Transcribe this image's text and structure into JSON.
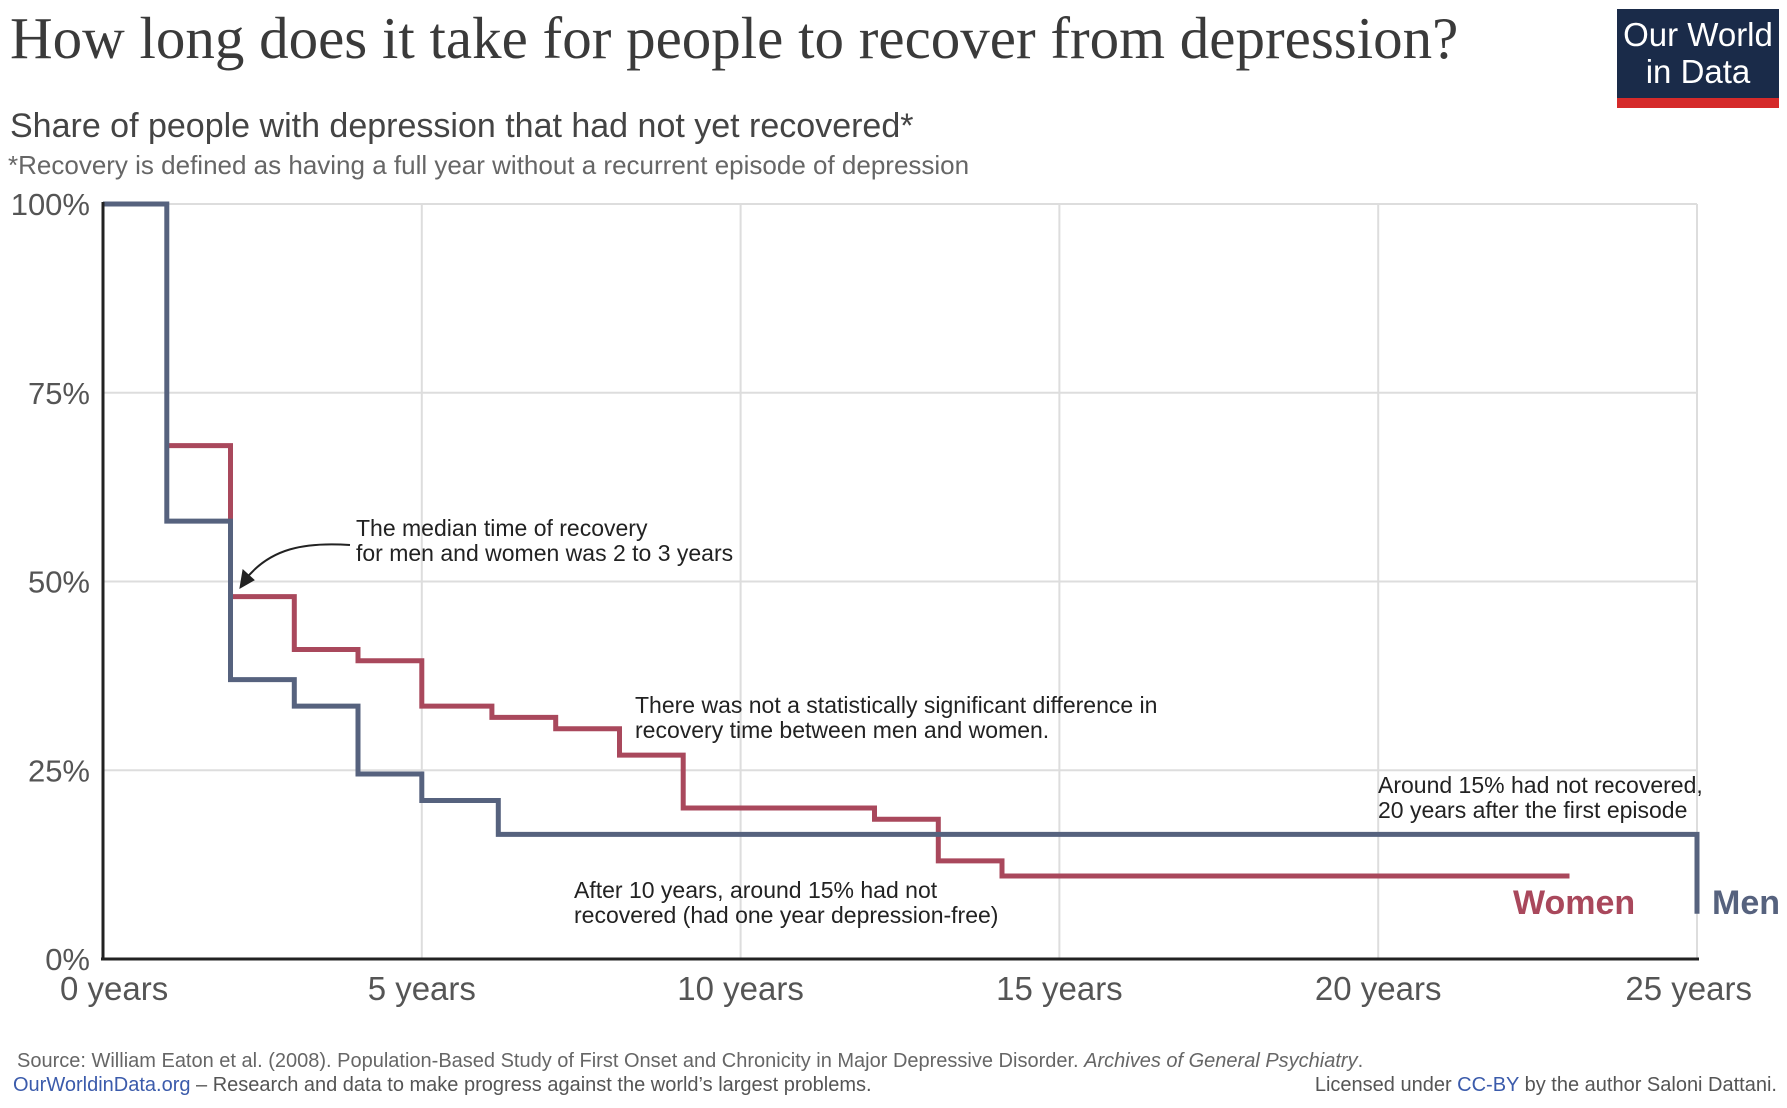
{
  "title": "How long does it take for people to recover from depression?",
  "subtitle": "Share of people with depression that had not yet recovered*",
  "note": "*Recovery is defined as having a full year without a recurrent episode of depression",
  "logo": {
    "line1": "Our World",
    "line2": "in Data"
  },
  "footer": {
    "source_prefix": "Source: William Eaton et al. (2008). Population-Based Study of First Onset and Chronicity in Major Depressive Disorder. ",
    "source_journal": "Archives of General Psychiatry",
    "source_suffix": ".",
    "site_link": "OurWorldinData.org",
    "site_text": " – Research and data to make progress against the world’s largest problems.",
    "license_prefix": "Licensed under ",
    "license_link": "CC-BY",
    "license_suffix": " by the author Saloni Dattani."
  },
  "colors": {
    "men": "#56627e",
    "women": "#a9485c",
    "grid": "#dddddd",
    "axis": "#222222",
    "text": "#333333"
  },
  "chart_data": {
    "type": "line",
    "step": true,
    "xlim": [
      0,
      25
    ],
    "ylim": [
      0,
      100
    ],
    "x_ticks": [
      {
        "value": 0,
        "label": "0 years"
      },
      {
        "value": 5,
        "label": "5 years"
      },
      {
        "value": 10,
        "label": "10 years"
      },
      {
        "value": 15,
        "label": "15 years"
      },
      {
        "value": 20,
        "label": "20 years"
      },
      {
        "value": 25,
        "label": "25 years"
      }
    ],
    "y_ticks": [
      {
        "value": 0,
        "label": "0%"
      },
      {
        "value": 25,
        "label": "25%"
      },
      {
        "value": 50,
        "label": "50%"
      },
      {
        "value": 75,
        "label": "75%"
      },
      {
        "value": 100,
        "label": "100%"
      }
    ],
    "grid": true,
    "series": [
      {
        "name": "Men",
        "color": "#56627e",
        "points": [
          [
            0,
            100
          ],
          [
            1,
            100
          ],
          [
            1,
            58
          ],
          [
            2,
            58
          ],
          [
            2,
            37
          ],
          [
            3,
            37
          ],
          [
            3,
            33.5
          ],
          [
            4,
            33.5
          ],
          [
            4,
            24.5
          ],
          [
            5,
            24.5
          ],
          [
            5,
            21
          ],
          [
            6.2,
            21
          ],
          [
            6.2,
            16.5
          ],
          [
            25,
            16.5
          ],
          [
            25,
            6
          ]
        ]
      },
      {
        "name": "Women",
        "color": "#a9485c",
        "points": [
          [
            1,
            68
          ],
          [
            2,
            68
          ],
          [
            2,
            48
          ],
          [
            3,
            48
          ],
          [
            3,
            41
          ],
          [
            4,
            41
          ],
          [
            4,
            39.5
          ],
          [
            5,
            39.5
          ],
          [
            5,
            33.5
          ],
          [
            6.1,
            33.5
          ],
          [
            6.1,
            32
          ],
          [
            7.1,
            32
          ],
          [
            7.1,
            30.5
          ],
          [
            8.1,
            30.5
          ],
          [
            8.1,
            27
          ],
          [
            9.1,
            27
          ],
          [
            9.1,
            20
          ],
          [
            12.1,
            20
          ],
          [
            12.1,
            18.5
          ],
          [
            13.1,
            18.5
          ],
          [
            13.1,
            13
          ],
          [
            14.1,
            13
          ],
          [
            14.1,
            11
          ],
          [
            23,
            11
          ]
        ]
      }
    ],
    "annotations": [
      {
        "id": "median",
        "lines": [
          "The median time of recovery",
          "for men and women was 2 to 3 years"
        ]
      },
      {
        "id": "nosig",
        "lines": [
          "There was not a statistically significant difference in",
          "recovery time between men and women."
        ]
      },
      {
        "id": "after10",
        "lines": [
          "After 10 years, around 15% had not",
          "recovered (had one year depression-free)"
        ]
      },
      {
        "id": "around15",
        "lines": [
          "Around 15% had not recovered,",
          "20 years after the first episode"
        ]
      }
    ]
  }
}
